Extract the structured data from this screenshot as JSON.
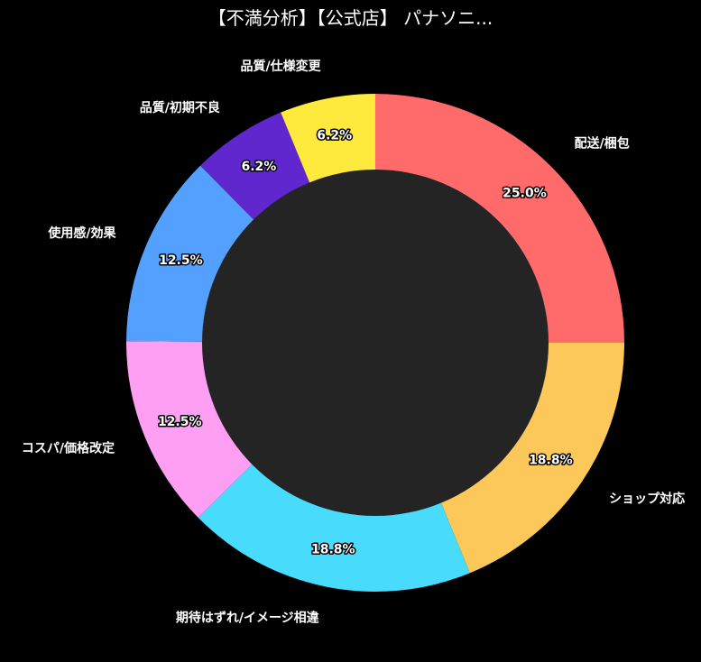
{
  "chart_data": {
    "type": "pie",
    "style": "donut",
    "title": "【不満分析】【公式店】 パナソニ...",
    "categories": [
      "配送/梱包",
      "ショップ対応",
      "期待はずれ/イメージ相違",
      "コスパ/価格改定",
      "使用感/効果",
      "品質/初期不良",
      "品質/仕様変更"
    ],
    "values": [
      25.0,
      18.8,
      18.8,
      12.5,
      12.5,
      6.2,
      6.2
    ],
    "value_labels": [
      "25.0%",
      "18.8%",
      "18.8%",
      "12.5%",
      "12.5%",
      "6.2%",
      "6.2%"
    ],
    "colors": [
      "#ff6b6b",
      "#fdc85a",
      "#48dbfb",
      "#ff9ff3",
      "#54a0ff",
      "#5f27cd",
      "#feea3d"
    ],
    "start": "top",
    "direction": "clockwise",
    "center_color": "#242424",
    "background": "#000000",
    "legend": "none"
  }
}
